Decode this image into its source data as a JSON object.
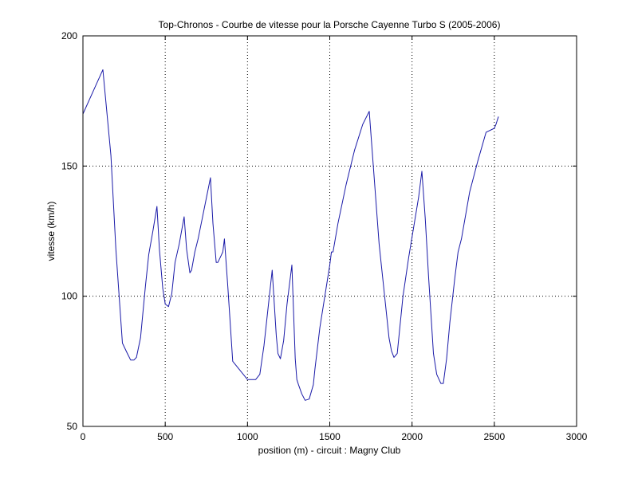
{
  "chart_data": {
    "type": "line",
    "title": "Top-Chronos - Courbe de vitesse pour la Porsche Cayenne Turbo S (2005-2006)",
    "xlabel": "position (m) - circuit : Magny Club",
    "ylabel": "vitesse (km/h)",
    "xlim": [
      0,
      3000
    ],
    "ylim": [
      50,
      200
    ],
    "xticks": [
      0,
      500,
      1000,
      1500,
      2000,
      2500,
      3000
    ],
    "yticks": [
      50,
      100,
      150,
      200
    ],
    "xtick_labels": [
      "0",
      "500",
      "1000",
      "1500",
      "2000",
      "2500",
      "3000"
    ],
    "ytick_labels": [
      "50",
      "100",
      "150",
      "200"
    ],
    "grid": true,
    "grid_style": "dotted",
    "line_color": "#1a1aa8",
    "series": [
      {
        "x": [
          0,
          121,
          170,
          200,
          240,
          270,
          290,
          310,
          325,
          350,
          380,
          400,
          425,
          450,
          465,
          485,
          500,
          520,
          540,
          560,
          585,
          615,
          630,
          650,
          660,
          680,
          700,
          775,
          790,
          810,
          820,
          835,
          850,
          860,
          880,
          910,
          1000,
          1050,
          1075,
          1100,
          1150,
          1175,
          1185,
          1200,
          1220,
          1240,
          1270,
          1290,
          1300,
          1310,
          1330,
          1350,
          1375,
          1400,
          1410,
          1440,
          1500,
          1510,
          1520,
          1550,
          1600,
          1650,
          1700,
          1740,
          1800,
          1860,
          1875,
          1890,
          1910,
          1945,
          1980,
          2040,
          2060,
          2080,
          2100,
          2130,
          2150,
          2175,
          2190,
          2210,
          2230,
          2260,
          2280,
          2300,
          2350,
          2400,
          2450,
          2500,
          2510,
          2525
        ],
        "y": [
          170,
          187,
          154,
          118,
          82,
          78,
          75.5,
          75.5,
          76.5,
          84,
          104,
          116,
          125,
          134.5,
          118,
          103,
          97,
          96,
          101,
          113,
          120,
          130.5,
          118,
          109,
          110,
          117,
          122,
          145.5,
          128,
          113,
          113,
          115,
          117,
          122,
          104,
          75,
          68,
          68,
          70,
          81,
          110,
          85,
          78,
          76,
          83,
          97,
          112,
          76,
          68,
          66,
          62.5,
          60,
          60.5,
          66,
          72,
          88,
          112,
          117,
          117,
          128,
          143,
          156,
          166,
          171,
          120,
          84,
          79,
          76.5,
          78,
          100,
          115,
          138,
          148,
          130,
          108,
          78,
          70,
          66.5,
          66.5,
          76,
          90,
          107,
          117,
          122,
          140,
          152,
          163,
          164.5,
          166,
          169
        ]
      }
    ]
  }
}
